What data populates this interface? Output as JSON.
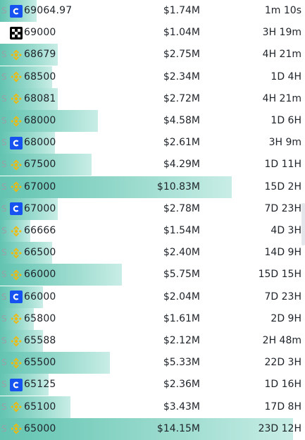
{
  "rows": [
    {
      "prefix": "S",
      "exchange": "coinbase",
      "icon": "coinbase-icon",
      "price": "69064.97",
      "amount": "$1.74M",
      "time": "1m 10s",
      "fill": 0.12
    },
    {
      "prefix": "",
      "exchange": "okx",
      "icon": "okx-icon",
      "price": "69000",
      "amount": "$1.04M",
      "time": "3H 19m",
      "fill": 0.0
    },
    {
      "prefix": "S",
      "exchange": "binance",
      "icon": "binance-icon",
      "price": "68679",
      "amount": "$2.75M",
      "time": "4H 21m",
      "fill": 0.19
    },
    {
      "prefix": "S",
      "exchange": "binance",
      "icon": "binance-icon",
      "price": "68500",
      "amount": "$2.34M",
      "time": "1D 4H",
      "fill": 0.17
    },
    {
      "prefix": "S",
      "exchange": "binance",
      "icon": "binance-icon",
      "price": "68081",
      "amount": "$2.72M",
      "time": "4H 21m",
      "fill": 0.19
    },
    {
      "prefix": "S",
      "exchange": "binance",
      "icon": "binance-icon",
      "price": "68000",
      "amount": "$4.58M",
      "time": "1D 6H",
      "fill": 0.32
    },
    {
      "prefix": "S",
      "exchange": "coinbase",
      "icon": "coinbase-icon",
      "price": "68000",
      "amount": "$2.61M",
      "time": "3H 9m",
      "fill": 0.18
    },
    {
      "prefix": "S",
      "exchange": "binance",
      "icon": "binance-icon",
      "price": "67500",
      "amount": "$4.29M",
      "time": "1D 11H",
      "fill": 0.3
    },
    {
      "prefix": "S",
      "exchange": "binance",
      "icon": "binance-icon",
      "price": "67000",
      "amount": "$10.83M",
      "time": "15D 2H",
      "fill": 0.76
    },
    {
      "prefix": "S",
      "exchange": "coinbase",
      "icon": "coinbase-icon",
      "price": "67000",
      "amount": "$2.78M",
      "time": "7D 23H",
      "fill": 0.19
    },
    {
      "prefix": "S",
      "exchange": "binance",
      "icon": "binance-icon",
      "price": "66666",
      "amount": "$1.54M",
      "time": "4D 3H",
      "fill": 0.1
    },
    {
      "prefix": "S",
      "exchange": "binance",
      "icon": "binance-icon",
      "price": "66500",
      "amount": "$2.40M",
      "time": "14D 9H",
      "fill": 0.17
    },
    {
      "prefix": "S",
      "exchange": "binance",
      "icon": "binance-icon",
      "price": "66000",
      "amount": "$5.75M",
      "time": "15D 15H",
      "fill": 0.4
    },
    {
      "prefix": "S",
      "exchange": "coinbase",
      "icon": "coinbase-icon",
      "price": "66000",
      "amount": "$2.04M",
      "time": "7D 23H",
      "fill": 0.14
    },
    {
      "prefix": "S",
      "exchange": "binance",
      "icon": "binance-icon",
      "price": "65800",
      "amount": "$1.61M",
      "time": "2D 9H",
      "fill": 0.11
    },
    {
      "prefix": "S",
      "exchange": "binance",
      "icon": "binance-icon",
      "price": "65588",
      "amount": "$2.12M",
      "time": "2H 48m",
      "fill": 0.14
    },
    {
      "prefix": "S",
      "exchange": "binance",
      "icon": "binance-icon",
      "price": "65500",
      "amount": "$5.33M",
      "time": "22D 3H",
      "fill": 0.36
    },
    {
      "prefix": "S",
      "exchange": "coinbase",
      "icon": "coinbase-icon",
      "price": "65125",
      "amount": "$2.36M",
      "time": "1D 16H",
      "fill": 0.16
    },
    {
      "prefix": "S",
      "exchange": "binance",
      "icon": "binance-icon",
      "price": "65100",
      "amount": "$3.43M",
      "time": "17D 8H",
      "fill": 0.23
    },
    {
      "prefix": "S",
      "exchange": "binance",
      "icon": "binance-icon",
      "price": "65000",
      "amount": "$14.15M",
      "time": "23D 12H",
      "fill": 0.96
    }
  ],
  "colors": {
    "bar_start": "#62c4b1",
    "bar_end": "#c8ede6",
    "coinbase": "#1652f0",
    "binance": "#f0b90b",
    "okx": "#000000"
  }
}
